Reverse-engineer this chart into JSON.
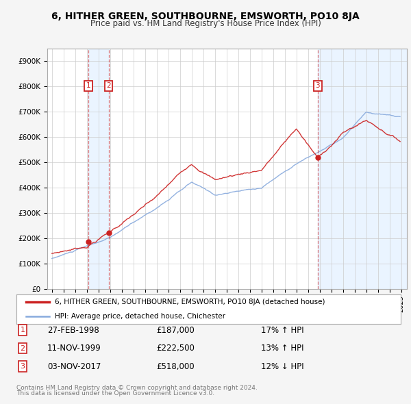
{
  "title": "6, HITHER GREEN, SOUTHBOURNE, EMSWORTH, PO10 8JA",
  "subtitle": "Price paid vs. HM Land Registry's House Price Index (HPI)",
  "legend_red": "6, HITHER GREEN, SOUTHBOURNE, EMSWORTH, PO10 8JA (detached house)",
  "legend_blue": "HPI: Average price, detached house, Chichester",
  "footer1": "Contains HM Land Registry data © Crown copyright and database right 2024.",
  "footer2": "This data is licensed under the Open Government Licence v3.0.",
  "sales": [
    {
      "num": 1,
      "date": "27-FEB-1998",
      "price": 187000,
      "pct": "17%",
      "dir": "↑",
      "year": 1998.15
    },
    {
      "num": 2,
      "date": "11-NOV-1999",
      "price": 222500,
      "pct": "13%",
      "dir": "↑",
      "year": 1999.87
    },
    {
      "num": 3,
      "date": "03-NOV-2017",
      "price": 518000,
      "pct": "12%",
      "dir": "↓",
      "year": 2017.84
    }
  ],
  "ylim": [
    0,
    950000
  ],
  "yticks": [
    0,
    100000,
    200000,
    300000,
    400000,
    500000,
    600000,
    700000,
    800000,
    900000
  ],
  "ytick_labels": [
    "£0",
    "£100K",
    "£200K",
    "£300K",
    "£400K",
    "£500K",
    "£600K",
    "£700K",
    "£800K",
    "£900K"
  ],
  "red_color": "#cc2222",
  "blue_color": "#88aadd",
  "shade_color": "#ddeeff",
  "background_color": "#f5f5f5",
  "plot_bg_color": "#ffffff",
  "grid_color": "#cccccc",
  "xlim_start": 1994.6,
  "xlim_end": 2025.5,
  "x_start": 1995,
  "x_end": 2025
}
